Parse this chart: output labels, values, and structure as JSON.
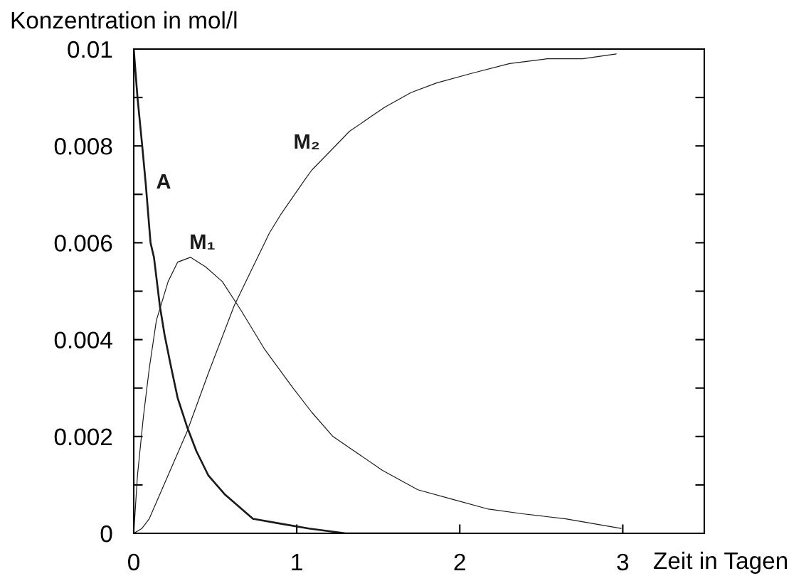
{
  "chart_data": {
    "type": "line",
    "xlabel": "Zeit in Tagen",
    "ylabel": "Konzentration in mol/l",
    "xlim": [
      0,
      3.5
    ],
    "ylim": [
      0,
      0.01
    ],
    "xticks": [
      0,
      1,
      2,
      3
    ],
    "yticks": [
      0,
      {
        "value": 0.001,
        "label": null
      },
      0.002,
      {
        "value": 0.003,
        "label": null
      },
      0.004,
      {
        "value": 0.005,
        "label": null
      },
      0.006,
      {
        "value": 0.007,
        "label": null
      },
      0.008,
      {
        "value": 0.009,
        "label": null
      },
      0.01
    ],
    "marker": "none",
    "line_style": "solid",
    "series": [
      {
        "name": "A",
        "color": "#1a1a1a",
        "x": [
          0,
          0.023,
          0.052,
          0.074,
          0.103,
          0.124,
          0.16,
          0.189,
          0.225,
          0.269,
          0.327,
          0.384,
          0.457,
          0.56,
          0.731,
          0.9,
          1.075,
          1.3,
          1.6,
          2.0
        ],
        "values": [
          0.01,
          0.009,
          0.008,
          0.0072,
          0.006,
          0.0057,
          0.0047,
          0.0041,
          0.0035,
          0.0028,
          0.0022,
          0.0017,
          0.0012,
          0.0008,
          0.0003,
          0.0002,
          0.0001,
          0,
          0,
          0
        ]
      },
      {
        "name": "M₁",
        "color": "#1a1a1a",
        "x": [
          0,
          0.023,
          0.059,
          0.095,
          0.139,
          0.211,
          0.269,
          0.348,
          0.442,
          0.543,
          0.659,
          0.803,
          0.977,
          1.092,
          1.222,
          1.309,
          1.526,
          1.743,
          1.959,
          2.176,
          2.393,
          2.65,
          2.99
        ],
        "values": [
          0,
          0.0012,
          0.0024,
          0.0034,
          0.0044,
          0.0052,
          0.0056,
          0.0057,
          0.0055,
          0.0052,
          0.0046,
          0.0038,
          0.003,
          0.0025,
          0.002,
          0.0018,
          0.0013,
          0.0009,
          0.0007,
          0.0005,
          0.0004,
          0.0003,
          0.0001
        ]
      },
      {
        "name": "M₂",
        "color": "#1a1a1a",
        "x": [
          0,
          0.05,
          0.095,
          0.211,
          0.327,
          0.457,
          0.616,
          0.731,
          0.789,
          0.832,
          0.905,
          1.049,
          1.092,
          1.208,
          1.323,
          1.453,
          1.54,
          1.7,
          1.858,
          2.075,
          2.306,
          2.537,
          2.754,
          2.96
        ],
        "values": [
          0,
          0.0001,
          0.0003,
          0.0012,
          0.0021,
          0.0033,
          0.0047,
          0.0055,
          0.0059,
          0.0062,
          0.0066,
          0.0073,
          0.0075,
          0.0079,
          0.0083,
          0.0086,
          0.0088,
          0.0091,
          0.0093,
          0.0095,
          0.0097,
          0.0098,
          0.0098,
          0.0099
        ]
      }
    ]
  }
}
